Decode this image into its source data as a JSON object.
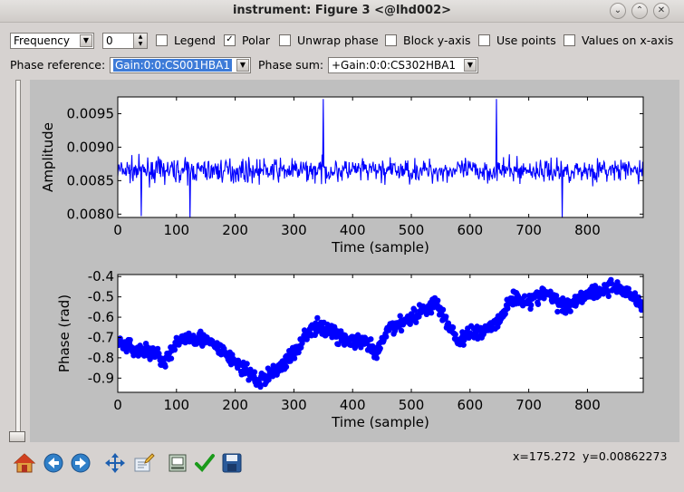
{
  "window": {
    "title": "instrument: Figure 3 <@lhd002>",
    "buttons": [
      "⌄",
      "⌃",
      "✕"
    ]
  },
  "controls": {
    "axis_mode": "Frequency",
    "index_value": "0",
    "checkboxes": [
      {
        "label": "Legend",
        "checked": false
      },
      {
        "label": "Polar",
        "checked": true
      },
      {
        "label": "Unwrap phase",
        "checked": false
      },
      {
        "label": "Block y-axis",
        "checked": false
      },
      {
        "label": "Use points",
        "checked": false
      },
      {
        "label": "Values on x-axis",
        "checked": false
      }
    ],
    "phase_reference_label": "Phase reference:",
    "phase_reference_value": "Gain:0:0:CS001HBA1",
    "phase_sum_label": "Phase sum:",
    "phase_sum_value": "+Gain:0:0:CS302HBA1"
  },
  "status": {
    "x": "x=175.272",
    "y": "y=0.00862273"
  },
  "toolbar": [
    "home-icon",
    "back-arrow-icon",
    "forward-arrow-icon",
    "pan-arrows-icon",
    "zoom-edit-icon",
    "subplot-config-icon",
    "check-icon",
    "save-disk-icon"
  ],
  "colors": {
    "series": "#0000ff",
    "figure_bg": "#bfbfbf",
    "axes_bg": "#ffffff"
  },
  "chart_data": [
    {
      "type": "line",
      "title": "",
      "xlabel": "Time (sample)",
      "ylabel": "Amplitude",
      "xlim": [
        0,
        895
      ],
      "ylim": [
        0.00795,
        0.00975
      ],
      "xticks": [
        0,
        100,
        200,
        300,
        400,
        500,
        600,
        700,
        800
      ],
      "yticks": [
        0.008,
        0.0085,
        0.009,
        0.0095
      ],
      "ytick_labels": [
        "0.0080",
        "0.0085",
        "0.0090",
        "0.0095"
      ],
      "grid": false,
      "series": [
        {
          "color": "#0000ff",
          "n": 895,
          "base": 0.00865,
          "noise": 0.00022,
          "spikes": [
            [
              123,
              0.00792
            ],
            [
              350,
              0.00972
            ],
            [
              645,
              0.00972
            ],
            [
              757,
              0.00794
            ],
            [
              40,
              0.00797
            ]
          ]
        }
      ]
    },
    {
      "type": "scatter",
      "title": "",
      "xlabel": "Time (sample)",
      "ylabel": "Phase (rad)",
      "xlim": [
        0,
        895
      ],
      "ylim": [
        -0.97,
        -0.39
      ],
      "xticks": [
        0,
        100,
        200,
        300,
        400,
        500,
        600,
        700,
        800
      ],
      "yticks": [
        -0.9,
        -0.8,
        -0.7,
        -0.6,
        -0.5,
        -0.4
      ],
      "ytick_labels": [
        "-0.9",
        "-0.8",
        "-0.7",
        "-0.6",
        "-0.5",
        "-0.4"
      ],
      "grid": false,
      "series": [
        {
          "color": "#0000ff",
          "n": 895,
          "noise": 0.025,
          "trend": [
            [
              0,
              -0.72
            ],
            [
              30,
              -0.76
            ],
            [
              60,
              -0.77
            ],
            [
              80,
              -0.82
            ],
            [
              110,
              -0.7
            ],
            [
              140,
              -0.7
            ],
            [
              170,
              -0.75
            ],
            [
              200,
              -0.82
            ],
            [
              240,
              -0.92
            ],
            [
              270,
              -0.86
            ],
            [
              300,
              -0.78
            ],
            [
              320,
              -0.68
            ],
            [
              340,
              -0.65
            ],
            [
              360,
              -0.66
            ],
            [
              380,
              -0.7
            ],
            [
              400,
              -0.72
            ],
            [
              425,
              -0.73
            ],
            [
              440,
              -0.79
            ],
            [
              460,
              -0.66
            ],
            [
              500,
              -0.6
            ],
            [
              540,
              -0.53
            ],
            [
              560,
              -0.62
            ],
            [
              580,
              -0.72
            ],
            [
              600,
              -0.68
            ],
            [
              620,
              -0.67
            ],
            [
              650,
              -0.62
            ],
            [
              670,
              -0.5
            ],
            [
              700,
              -0.52
            ],
            [
              730,
              -0.48
            ],
            [
              760,
              -0.55
            ],
            [
              800,
              -0.48
            ],
            [
              850,
              -0.45
            ],
            [
              880,
              -0.5
            ],
            [
              895,
              -0.55
            ]
          ]
        }
      ]
    }
  ]
}
